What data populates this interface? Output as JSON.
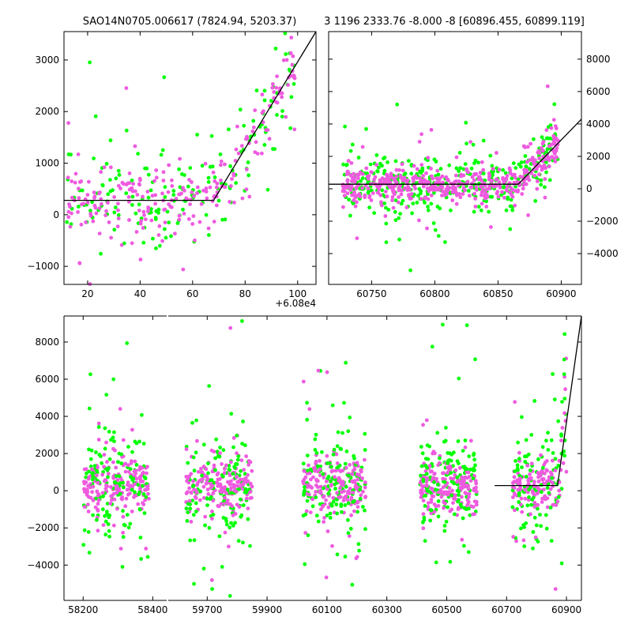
{
  "chart_data": [
    {
      "id": "top-left",
      "type": "scatter",
      "title": "SAO14N0705.006617 (7824.94, 5203.37)",
      "xlabel": "",
      "ylabel": "",
      "offset_label": "+6.08e4",
      "xlim": [
        11,
        107
      ],
      "ylim": [
        -1350,
        3550
      ],
      "xticks": [
        20,
        40,
        60,
        80,
        100
      ],
      "yticks": [
        -1000,
        0,
        1000,
        2000,
        3000
      ],
      "yaxis_side": "left",
      "fit_line": {
        "x": [
          11,
          68,
          107
        ],
        "y": [
          280,
          280,
          3550
        ]
      },
      "series": [
        {
          "name": "green",
          "color": "#00ff00",
          "x_range": [
            12,
            99
          ],
          "count": 180
        },
        {
          "name": "magenta",
          "color": "#ee5bdf",
          "x_range": [
            12,
            99
          ],
          "count": 240
        }
      ]
    },
    {
      "id": "top-right",
      "type": "scatter",
      "title": "3 1196 2333.76 -8.000 -8 [60896.455, 60899.119]",
      "xlabel": "",
      "ylabel": "",
      "xlim": [
        60716,
        60916
      ],
      "ylim": [
        -5900,
        9700
      ],
      "xticks": [
        60750,
        60800,
        60850,
        60900
      ],
      "yticks": [
        -4000,
        -2000,
        0,
        2000,
        4000,
        6000,
        8000
      ],
      "yaxis_side": "right",
      "fit_line": {
        "x": [
          60716,
          60866,
          60916
        ],
        "y": [
          280,
          280,
          4300
        ]
      },
      "series": [
        {
          "name": "green",
          "color": "#00ff00",
          "x_range": [
            60727,
            60898
          ],
          "count": 360
        },
        {
          "name": "magenta",
          "color": "#ee5bdf",
          "x_range": [
            60727,
            60898
          ],
          "count": 480
        }
      ]
    },
    {
      "id": "bottom",
      "type": "scatter",
      "title": "",
      "xlabel": "",
      "ylabel": "",
      "ylim": [
        -5900,
        9400
      ],
      "yticks": [
        -4000,
        -2000,
        0,
        2000,
        4000,
        6000,
        8000
      ],
      "yaxis_side": "left",
      "xlim_segments": [
        [
          58145,
          58440
        ],
        [
          59570,
          60950
        ]
      ],
      "xticks": [
        58200,
        58400,
        59700,
        59900,
        60100,
        60300,
        60500,
        60700,
        60900
      ],
      "fit_line": {
        "x": [
          60660,
          60870,
          60950
        ],
        "y": [
          280,
          280,
          9400
        ]
      },
      "clusters": [
        {
          "x_range": [
            58200,
            58390
          ],
          "count": 330
        },
        {
          "x_range": [
            59630,
            59850
          ],
          "count": 330
        },
        {
          "x_range": [
            60020,
            60230
          ],
          "count": 330
        },
        {
          "x_range": [
            60410,
            60600
          ],
          "count": 330
        },
        {
          "x_range": [
            60720,
            60900
          ],
          "count": 250
        }
      ],
      "series": [
        {
          "name": "green",
          "color": "#00ff00"
        },
        {
          "name": "magenta",
          "color": "#ee5bdf"
        }
      ]
    }
  ]
}
